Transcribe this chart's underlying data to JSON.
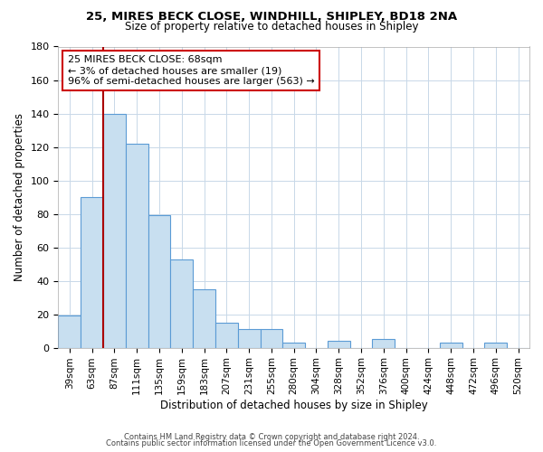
{
  "title1": "25, MIRES BECK CLOSE, WINDHILL, SHIPLEY, BD18 2NA",
  "title2": "Size of property relative to detached houses in Shipley",
  "xlabel": "Distribution of detached houses by size in Shipley",
  "ylabel": "Number of detached properties",
  "bar_labels": [
    "39sqm",
    "63sqm",
    "87sqm",
    "111sqm",
    "135sqm",
    "159sqm",
    "183sqm",
    "207sqm",
    "231sqm",
    "255sqm",
    "280sqm",
    "304sqm",
    "328sqm",
    "352sqm",
    "376sqm",
    "400sqm",
    "424sqm",
    "448sqm",
    "472sqm",
    "496sqm",
    "520sqm"
  ],
  "bar_values": [
    19,
    90,
    140,
    122,
    79,
    53,
    35,
    15,
    11,
    11,
    3,
    0,
    4,
    0,
    5,
    0,
    0,
    3,
    0,
    3,
    0
  ],
  "bar_color": "#c8dff0",
  "bar_edge_color": "#5b9bd5",
  "marker_line_color": "#aa0000",
  "annotation_line1": "25 MIRES BECK CLOSE: 68sqm",
  "annotation_line2": "← 3% of detached houses are smaller (19)",
  "annotation_line3": "96% of semi-detached houses are larger (563) →",
  "annotation_box_edge": "#cc0000",
  "ylim": [
    0,
    180
  ],
  "yticks": [
    0,
    20,
    40,
    60,
    80,
    100,
    120,
    140,
    160,
    180
  ],
  "footer1": "Contains HM Land Registry data © Crown copyright and database right 2024.",
  "footer2": "Contains public sector information licensed under the Open Government Licence v3.0.",
  "bg_color": "#ffffff",
  "grid_color": "#c8d8e8"
}
